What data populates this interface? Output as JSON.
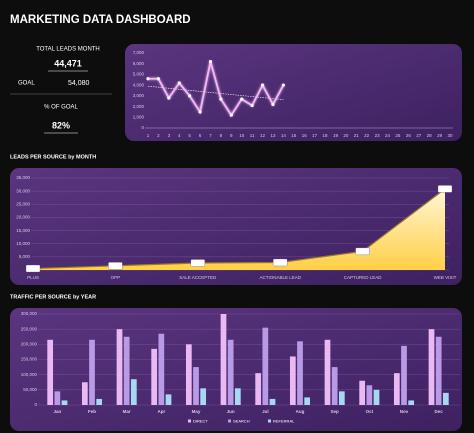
{
  "header": {
    "title": "MARKETING DATA DASHBOARD"
  },
  "kpis": {
    "total_label": "TOTAL LEADS MONTH",
    "total": "44,471",
    "goal_label": "GOAL",
    "goal": "54,080",
    "pct_label": "% OF GOAL",
    "pct": "82%"
  },
  "chart_data": [
    {
      "type": "line",
      "x": [
        1,
        2,
        3,
        4,
        5,
        6,
        7,
        8,
        9,
        10,
        11,
        12,
        13,
        14,
        15,
        16,
        17,
        18,
        19,
        20,
        21,
        22,
        23,
        24,
        25,
        26,
        27,
        28,
        29,
        30
      ],
      "values": [
        4600,
        4600,
        2800,
        4200,
        3000,
        1500,
        6200,
        2700,
        1200,
        2700,
        2100,
        4000,
        2200,
        4000,
        null,
        null,
        null,
        null,
        null,
        null,
        null,
        null,
        null,
        null,
        null,
        null,
        null,
        null,
        null,
        null
      ],
      "color": "#f4b8f4",
      "trendline": true,
      "xlim": [
        1,
        30
      ],
      "ylim": [
        0,
        7000
      ],
      "yticks": [
        0,
        {
          "value": 1000,
          "label": "1,000"
        },
        {
          "value": 2000,
          "label": "2,000"
        },
        {
          "value": 3000,
          "label": "3,000"
        },
        {
          "value": 4000,
          "label": "4,000"
        },
        {
          "value": 5000,
          "label": "5,000"
        },
        {
          "value": 6000,
          "label": "6,000"
        },
        {
          "value": 7000,
          "label": "7,000"
        }
      ],
      "grid": false
    },
    {
      "type": "area",
      "title": "LEADS PER SOURCE by MONTH",
      "categories": [
        "PLUS",
        "OPP",
        "SALE ACCEPTED",
        "ACTIONABLE LEAD",
        "CAPTURED LEAD",
        "WEB VISIT"
      ],
      "values": [
        555,
        1596,
        2668,
        2866,
        7089,
        30851
      ],
      "value_labels": [
        "555",
        "1,596",
        "2,668",
        "2,866",
        "7,089",
        "30,851"
      ],
      "color": "#ffd34d",
      "ylim": [
        0,
        35000
      ],
      "yticks": [
        0,
        {
          "value": 5000,
          "label": "5,000"
        },
        {
          "value": 10000,
          "label": "10,000"
        },
        {
          "value": 15000,
          "label": "15,000"
        },
        {
          "value": 20000,
          "label": "20,000"
        },
        {
          "value": 25000,
          "label": "25,000"
        },
        {
          "value": 30000,
          "label": "30,000"
        },
        {
          "value": 35000,
          "label": "35,000"
        }
      ],
      "grid": true
    },
    {
      "type": "bar",
      "title": "TRAFFIC PER SOURCE by YEAR",
      "categories": [
        "Jan",
        "Feb",
        "Mar",
        "Apr",
        "May",
        "Jun",
        "Jul",
        "Aug",
        "Sep",
        "Oct",
        "Nov",
        "Dec"
      ],
      "series": [
        {
          "name": "DIRECT",
          "color": "#eab8f2",
          "values": [
            215000,
            75000,
            250000,
            185000,
            200000,
            300000,
            105000,
            160000,
            215000,
            80000,
            105000,
            250000
          ]
        },
        {
          "name": "SEARCH",
          "color": "#b89ae6",
          "values": [
            45000,
            215000,
            225000,
            235000,
            125000,
            215000,
            255000,
            210000,
            125000,
            65000,
            195000,
            225000
          ]
        },
        {
          "name": "REFERRAL",
          "color": "#a6d8f2",
          "values": [
            15000,
            20000,
            85000,
            35000,
            55000,
            55000,
            20000,
            25000,
            45000,
            50000,
            15000,
            40000
          ]
        }
      ],
      "ylim": [
        0,
        300000
      ],
      "yticks": [
        0,
        {
          "value": 50000,
          "label": "50,000"
        },
        {
          "value": 100000,
          "label": "100,000"
        },
        {
          "value": 150000,
          "label": "150,000"
        },
        {
          "value": 200000,
          "label": "200,000"
        },
        {
          "value": 250000,
          "label": "250,000"
        },
        {
          "value": 300000,
          "label": "300,000"
        }
      ],
      "grid": true,
      "legend": "bottom"
    }
  ]
}
